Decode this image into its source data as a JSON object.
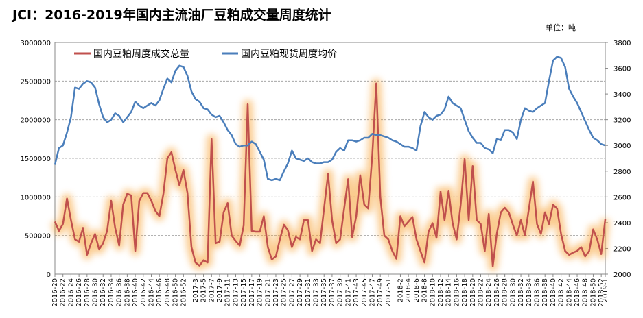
{
  "chart_data": {
    "type": "line",
    "title": "JCI：2016-2019年国内主流油厂豆粕成交量周度统计",
    "unit_label": "单位：吨",
    "categories": [
      "2016-20",
      null,
      "2016-22",
      null,
      "2016-24",
      null,
      "2016-26",
      null,
      "2016-28",
      null,
      "2016-30",
      null,
      "2016-32",
      null,
      "2016-34",
      null,
      "2016-36",
      null,
      "2016-38",
      null,
      "2016-40",
      null,
      "2016-42",
      null,
      "2016-44",
      null,
      "2016-46",
      null,
      "2016-48",
      null,
      "2016-50",
      null,
      "2016-52",
      null,
      null,
      "2017-3",
      null,
      "2017-5",
      null,
      "2017-7",
      null,
      "2017-9",
      null,
      "2017-11",
      null,
      "2017-13",
      null,
      "2017-15",
      null,
      "2017-17",
      null,
      "2017-19",
      null,
      "2017-21",
      null,
      "2017-23",
      null,
      "2017-25",
      null,
      "2017-27",
      null,
      "2017-29",
      null,
      "2017-31",
      null,
      "2017-33",
      null,
      "2017-35",
      null,
      "2017-37",
      null,
      "2017-39",
      null,
      "2017-41",
      null,
      "2017-43",
      null,
      "2017-45",
      null,
      "2017-47",
      null,
      "2017-49",
      null,
      "2017-51",
      null,
      null,
      "2018-2",
      null,
      "2018-4",
      null,
      "2018-6",
      null,
      "2018-8",
      null,
      "2018-10",
      null,
      "2018-12",
      null,
      "2018-14",
      null,
      "2018-16",
      null,
      "2018-18",
      null,
      "2018-20",
      null,
      "2018-22",
      null,
      "2018-24",
      null,
      "2018-26",
      null,
      "2018-28",
      null,
      "2018-30",
      null,
      "2018-32",
      null,
      "2018-34",
      null,
      "2018-36",
      null,
      "2018-38",
      null,
      "2018-40",
      null,
      "2018-42",
      null,
      "2018-44",
      null,
      "2018-46",
      null,
      "2018-48",
      null,
      "2018-50",
      null,
      "2018-52",
      "2019-1"
    ],
    "series": [
      {
        "name": "国内豆粕周度成交总量",
        "color": "#c0504d",
        "axis": "y",
        "values": [
          680000,
          560000,
          650000,
          980000,
          700000,
          450000,
          420000,
          600000,
          250000,
          400000,
          520000,
          320000,
          400000,
          560000,
          950000,
          600000,
          370000,
          900000,
          1040000,
          1020000,
          300000,
          950000,
          1050000,
          1050000,
          950000,
          820000,
          750000,
          1040000,
          1500000,
          1580000,
          1350000,
          1150000,
          1350000,
          1050000,
          350000,
          150000,
          110000,
          180000,
          150000,
          1750000,
          400000,
          420000,
          800000,
          920000,
          500000,
          430000,
          370000,
          630000,
          2200000,
          560000,
          550000,
          550000,
          750000,
          350000,
          190000,
          230000,
          450000,
          640000,
          570000,
          350000,
          480000,
          450000,
          700000,
          700000,
          300000,
          450000,
          400000,
          850000,
          1300000,
          700000,
          400000,
          450000,
          850000,
          1230000,
          480000,
          750000,
          1280000,
          900000,
          850000,
          1540000,
          2470000,
          1000000,
          500000,
          450000,
          300000,
          200000,
          750000,
          620000,
          680000,
          740000,
          450000,
          300000,
          150000,
          550000,
          660000,
          470000,
          1070000,
          700000,
          1080000,
          660000,
          450000,
          900000,
          1490000,
          700000,
          1400000,
          700000,
          650000,
          300000,
          780000,
          100000,
          520000,
          800000,
          860000,
          800000,
          640000,
          500000,
          700000,
          500000,
          850000,
          1200000,
          650000,
          520000,
          800000,
          650000,
          900000,
          850000,
          520000,
          300000,
          250000,
          280000,
          300000,
          350000,
          230000,
          300000,
          580000,
          450000,
          260000,
          710000
        ]
      },
      {
        "name": "国内豆粕现货周度均价",
        "color": "#4a7ebb",
        "axis": "y2",
        "values": [
          2850,
          2980,
          3000,
          3100,
          3220,
          3450,
          3440,
          3480,
          3500,
          3490,
          3450,
          3320,
          3220,
          3180,
          3200,
          3250,
          3230,
          3180,
          3220,
          3260,
          3340,
          3310,
          3290,
          3310,
          3330,
          3310,
          3350,
          3440,
          3520,
          3490,
          3580,
          3620,
          3610,
          3540,
          3420,
          3360,
          3340,
          3290,
          3280,
          3240,
          3220,
          3230,
          3180,
          3120,
          3080,
          3010,
          2990,
          3000,
          3000,
          3030,
          3010,
          2950,
          2890,
          2740,
          2730,
          2740,
          2730,
          2800,
          2860,
          2960,
          2900,
          2890,
          2880,
          2900,
          2870,
          2860,
          2860,
          2870,
          2870,
          2890,
          2950,
          2980,
          2960,
          3040,
          3040,
          3030,
          3040,
          3060,
          3060,
          3090,
          3080,
          3080,
          3070,
          3060,
          3040,
          3030,
          3010,
          2990,
          2990,
          2980,
          2960,
          3150,
          3260,
          3220,
          3200,
          3230,
          3240,
          3280,
          3380,
          3330,
          3310,
          3290,
          3200,
          3110,
          3060,
          3020,
          3020,
          2980,
          2970,
          2940,
          3050,
          3040,
          3120,
          3120,
          3100,
          3050,
          3200,
          3290,
          3270,
          3260,
          3290,
          3310,
          3330,
          3500,
          3660,
          3690,
          3680,
          3610,
          3440,
          3380,
          3330,
          3260,
          3190,
          3120,
          3060,
          3040,
          3010,
          3000
        ]
      }
    ],
    "ylim": [
      0,
      3000000
    ],
    "yticks": [
      0,
      500000,
      1000000,
      1500000,
      2000000,
      2500000,
      3000000
    ],
    "y2lim": [
      2000,
      3800
    ],
    "y2ticks": [
      2000,
      2200,
      2400,
      2600,
      2800,
      3000,
      3200,
      3400,
      3600,
      3800
    ],
    "grid": true
  }
}
